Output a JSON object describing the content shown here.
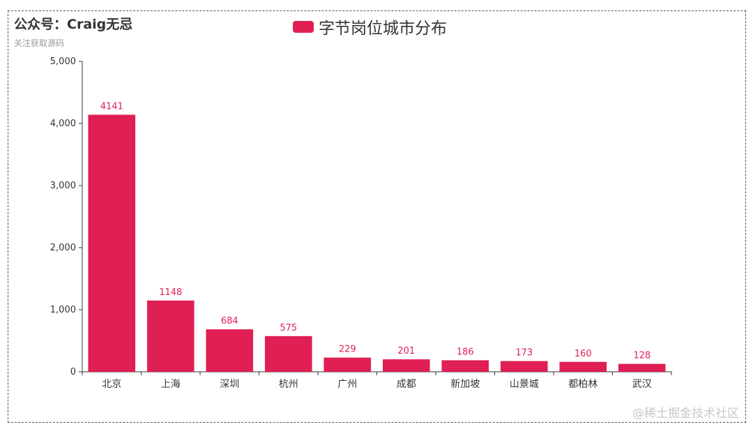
{
  "header": {
    "title": "公众号：Craig无忌",
    "subtitle": "关注获取源码"
  },
  "legend": {
    "label": "字节岗位城市分布",
    "color": "#e01f54"
  },
  "watermark": "@稀土掘金技术社区",
  "chart_data": {
    "type": "bar",
    "title": "公众号：Craig无忌",
    "subtitle": "关注获取源码",
    "categories": [
      "北京",
      "上海",
      "深圳",
      "杭州",
      "广州",
      "成都",
      "新加坡",
      "山景城",
      "都柏林",
      "武汉"
    ],
    "series": [
      {
        "name": "字节岗位城市分布",
        "values": [
          4141,
          1148,
          684,
          575,
          229,
          201,
          186,
          173,
          160,
          128
        ],
        "color": "#e01f54"
      }
    ],
    "ylim": [
      0,
      5000
    ],
    "yticks": [
      "0",
      "1,000",
      "2,000",
      "3,000",
      "4,000",
      "5,000"
    ],
    "show_data_labels": true,
    "legend_position": "top-center",
    "grid": false
  }
}
